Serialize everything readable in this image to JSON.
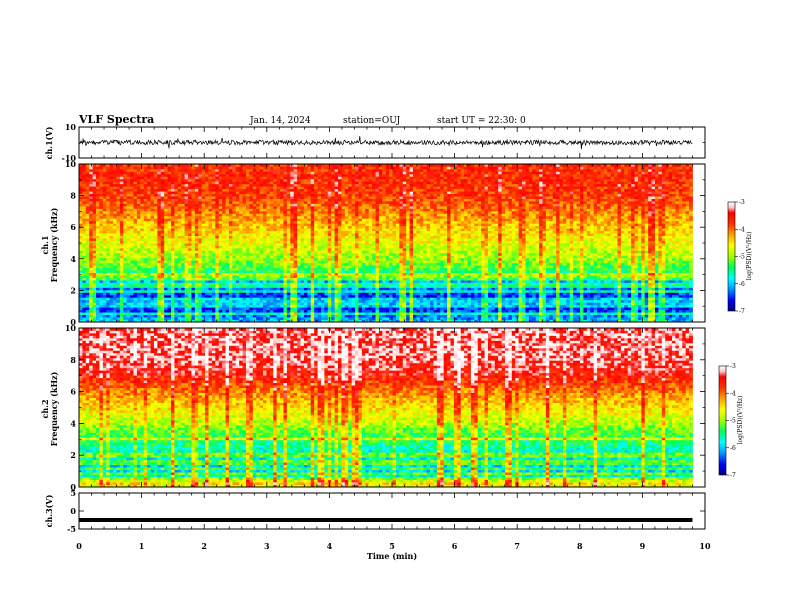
{
  "header": {
    "title": "VLF Spectra",
    "date": "Jan. 14, 2024",
    "station": "station=OUJ",
    "start": "start UT =  22:30: 0"
  },
  "colorbar": {
    "label": "log(PSD)(V²/Hz)",
    "ticks": [
      "-3",
      "-4",
      "-5",
      "-6",
      "-7"
    ],
    "colors": [
      "#00007a",
      "#0000ff",
      "#0096ff",
      "#00ffff",
      "#00ff5a",
      "#a0ff00",
      "#ffff00",
      "#ffa000",
      "#ff3200",
      "#ff0000",
      "#ffc8c8",
      "#ffffff"
    ]
  },
  "chart_data": [
    {
      "type": "line",
      "panel": "ch1-waveform",
      "ylabel": "ch.1(V)",
      "ylim": [
        -10,
        10
      ],
      "yticks": [
        "10",
        "-10"
      ],
      "x_range_min": [
        0,
        9.8
      ],
      "approx_mean_v": 0,
      "approx_amplitude_v": 3
    },
    {
      "type": "heatmap",
      "panel": "ch1-spectrogram",
      "ylabel_top": "ch.1",
      "ylabel": "Frequency (kHz)",
      "ylim": [
        0,
        10
      ],
      "yticks": [
        "0",
        "2",
        "4",
        "6",
        "8",
        "10"
      ],
      "clim": [
        -7,
        -3
      ],
      "x_range_min": [
        0,
        9.8
      ],
      "approx_profile": {
        "freq_khz": [
          0,
          0.5,
          1,
          1.5,
          2,
          2.5,
          3,
          3.5,
          4,
          5,
          6,
          7,
          8,
          9,
          10
        ],
        "log_psd": [
          -6.0,
          -6.3,
          -6.6,
          -6.6,
          -6.3,
          -6.1,
          -5.6,
          -5.2,
          -5.0,
          -4.7,
          -4.4,
          -4.1,
          -3.8,
          -3.7,
          -3.7
        ]
      }
    },
    {
      "type": "heatmap",
      "panel": "ch2-spectrogram",
      "ylabel_top": "ch.2",
      "ylabel": "Frequency (kHz)",
      "ylim": [
        0,
        10
      ],
      "yticks": [
        "0",
        "2",
        "4",
        "6",
        "8",
        "10"
      ],
      "clim": [
        -7,
        -3
      ],
      "x_range_min": [
        0,
        9.8
      ],
      "approx_profile": {
        "freq_khz": [
          0,
          0.5,
          1,
          1.5,
          2,
          2.5,
          3,
          3.5,
          4,
          5,
          6,
          7,
          8,
          9,
          10
        ],
        "log_psd": [
          -4.6,
          -5.6,
          -5.9,
          -5.9,
          -5.8,
          -5.6,
          -5.4,
          -5.2,
          -4.9,
          -4.5,
          -4.1,
          -3.6,
          -3.3,
          -3.3,
          -3.3
        ]
      }
    },
    {
      "type": "line",
      "panel": "ch3-waveform",
      "ylabel": "ch.3(V)",
      "ylim": [
        -5,
        5
      ],
      "yticks": [
        "5",
        "0",
        "-5"
      ],
      "x_range_min": [
        0,
        9.8
      ],
      "constant_v": -2.5,
      "xlabel": "Time (min)",
      "xlim": [
        0,
        10
      ],
      "xticks": [
        "0",
        "1",
        "2",
        "3",
        "4",
        "5",
        "6",
        "7",
        "8",
        "9",
        "10"
      ]
    }
  ]
}
